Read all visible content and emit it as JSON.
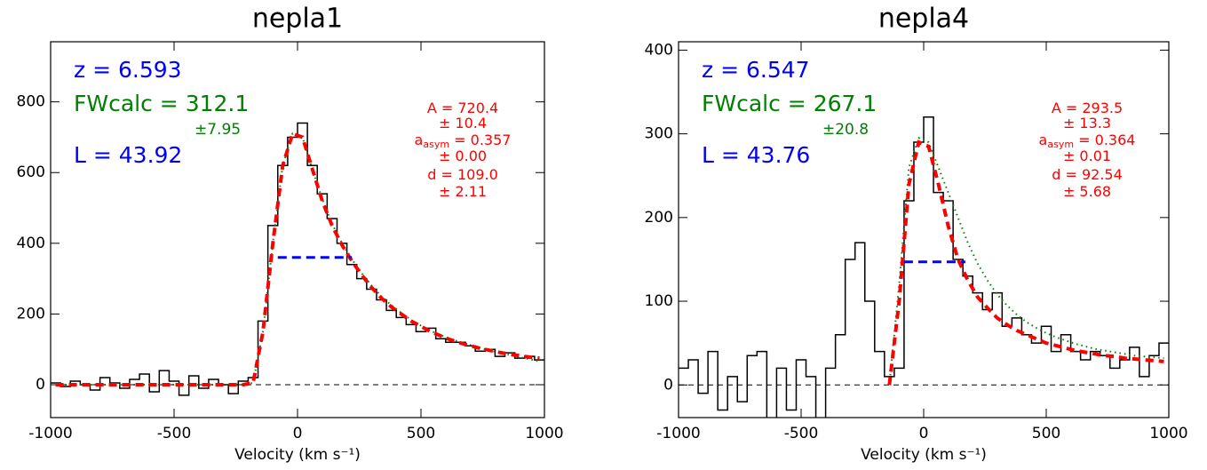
{
  "chart_data": [
    {
      "type": "step",
      "title": "nepla1",
      "xlabel": "Velocity (km s⁻¹)",
      "xlim": [
        -1000,
        1000
      ],
      "xticks": [
        -1000,
        -500,
        0,
        500,
        1000
      ],
      "ylim": [
        -93,
        970
      ],
      "yticks": [
        0,
        200,
        400,
        600,
        800
      ],
      "reference_line": 0,
      "fw_line": {
        "y": 360,
        "x": [
          -80,
          220
        ],
        "color": "#0000ff"
      },
      "x": [
        -980,
        -940,
        -900,
        -860,
        -820,
        -780,
        -740,
        -700,
        -660,
        -620,
        -580,
        -540,
        -500,
        -460,
        -420,
        -380,
        -340,
        -300,
        -260,
        -220,
        -180,
        -140,
        -100,
        -60,
        -20,
        20,
        60,
        100,
        140,
        180,
        220,
        260,
        300,
        340,
        380,
        420,
        460,
        500,
        540,
        580,
        620,
        660,
        700,
        740,
        780,
        820,
        860,
        900,
        940,
        980
      ],
      "series": [
        {
          "color": "#000000",
          "style": "step",
          "values": [
            5,
            -5,
            10,
            0,
            -15,
            20,
            5,
            -10,
            15,
            30,
            -20,
            40,
            10,
            -30,
            25,
            -10,
            15,
            0,
            -25,
            10,
            20,
            180,
            450,
            620,
            700,
            740,
            620,
            540,
            470,
            400,
            340,
            300,
            270,
            240,
            210,
            190,
            170,
            150,
            160,
            130,
            120,
            120,
            110,
            95,
            100,
            80,
            90,
            75,
            80,
            70
          ]
        },
        {
          "color": "#008000",
          "style": "dotted",
          "values": [
            0,
            0,
            0,
            0,
            0,
            0,
            0,
            0,
            0,
            0,
            0,
            0,
            0,
            0,
            0,
            0,
            0,
            0,
            0,
            0,
            5,
            150,
            400,
            620,
            710,
            700,
            610,
            525,
            455,
            400,
            355,
            315,
            280,
            250,
            225,
            203,
            183,
            167,
            152,
            140,
            129,
            120,
            112,
            104,
            97,
            90,
            84,
            78,
            72,
            66
          ]
        },
        {
          "color": "#ff0000",
          "style": "dashed",
          "values": [
            0,
            0,
            0,
            0,
            0,
            0,
            0,
            0,
            0,
            0,
            0,
            0,
            0,
            0,
            0,
            0,
            0,
            0,
            0,
            0,
            5,
            150,
            400,
            620,
            710,
            700,
            610,
            520,
            450,
            395,
            350,
            310,
            275,
            245,
            220,
            200,
            180,
            165,
            150,
            138,
            127,
            118,
            110,
            103,
            97,
            91,
            86,
            82,
            78,
            75
          ]
        }
      ],
      "annotations": [
        {
          "text": "z = 6.593",
          "color": "#0000ff"
        },
        {
          "text": "FWcalc = 312.1",
          "color": "#008000"
        },
        {
          "text": "±7.95",
          "color": "#008000"
        },
        {
          "text": "L = 43.92",
          "color": "#0000ff"
        },
        {
          "text": "A = 720.4",
          "color": "#ff0000"
        },
        {
          "text": "± 10.4",
          "color": "#ff0000"
        },
        {
          "text": "a",
          "sub": "asym",
          "rest": " = 0.357",
          "color": "#ff0000"
        },
        {
          "text": "± 0.00",
          "color": "#ff0000"
        },
        {
          "text": "d = 109.0",
          "color": "#ff0000"
        },
        {
          "text": "± 2.11",
          "color": "#ff0000"
        }
      ]
    },
    {
      "type": "step",
      "title": "nepla4",
      "xlabel": "Velocity (km s⁻¹)",
      "xlim": [
        -1000,
        1000
      ],
      "xticks": [
        -1000,
        -500,
        0,
        500,
        1000
      ],
      "ylim": [
        -39,
        410
      ],
      "yticks": [
        0,
        100,
        200,
        300,
        400
      ],
      "reference_line": 0,
      "fw_line": {
        "y": 147,
        "x": [
          -80,
          170
        ],
        "color": "#0000ff"
      },
      "x": [
        -980,
        -940,
        -900,
        -860,
        -820,
        -780,
        -740,
        -700,
        -660,
        -620,
        -580,
        -540,
        -500,
        -460,
        -420,
        -380,
        -340,
        -300,
        -260,
        -220,
        -180,
        -140,
        -100,
        -60,
        -20,
        20,
        60,
        100,
        140,
        180,
        220,
        260,
        300,
        340,
        380,
        420,
        460,
        500,
        540,
        580,
        620,
        660,
        700,
        740,
        780,
        820,
        860,
        900,
        940,
        980
      ],
      "series": [
        {
          "color": "#000000",
          "style": "step",
          "values": [
            20,
            30,
            -10,
            40,
            -30,
            10,
            -20,
            35,
            40,
            -40,
            20,
            -30,
            30,
            10,
            -40,
            20,
            60,
            150,
            170,
            100,
            40,
            10,
            20,
            220,
            290,
            320,
            230,
            220,
            150,
            130,
            110,
            90,
            110,
            70,
            80,
            60,
            50,
            70,
            40,
            60,
            40,
            30,
            40,
            35,
            20,
            30,
            45,
            10,
            35,
            50
          ]
        },
        {
          "color": "#008000",
          "style": "dotted",
          "values": [
            null,
            null,
            null,
            null,
            null,
            null,
            null,
            null,
            null,
            null,
            null,
            null,
            null,
            null,
            null,
            null,
            null,
            null,
            null,
            null,
            null,
            0,
            120,
            260,
            295,
            290,
            260,
            230,
            200,
            170,
            145,
            125,
            108,
            95,
            84,
            75,
            68,
            62,
            57,
            53,
            49,
            46,
            43,
            41,
            39,
            37,
            35,
            34,
            33,
            32
          ]
        },
        {
          "color": "#ff0000",
          "style": "dashed",
          "values": [
            null,
            null,
            null,
            null,
            null,
            null,
            null,
            null,
            null,
            null,
            null,
            null,
            null,
            null,
            null,
            null,
            null,
            null,
            null,
            null,
            null,
            0,
            100,
            240,
            290,
            285,
            240,
            190,
            150,
            125,
            105,
            92,
            80,
            72,
            65,
            60,
            55,
            50,
            47,
            44,
            41,
            39,
            37,
            35,
            34,
            32,
            31,
            30,
            29,
            28
          ]
        }
      ],
      "annotations": [
        {
          "text": "z = 6.547",
          "color": "#0000ff"
        },
        {
          "text": "FWcalc = 267.1",
          "color": "#008000"
        },
        {
          "text": "±20.8",
          "color": "#008000"
        },
        {
          "text": "L = 43.76",
          "color": "#0000ff"
        },
        {
          "text": "A = 293.5",
          "color": "#ff0000"
        },
        {
          "text": "± 13.3",
          "color": "#ff0000"
        },
        {
          "text": "a",
          "sub": "asym",
          "rest": " = 0.364",
          "color": "#ff0000"
        },
        {
          "text": "± 0.01",
          "color": "#ff0000"
        },
        {
          "text": "d = 92.54",
          "color": "#ff0000"
        },
        {
          "text": "± 5.68",
          "color": "#ff0000"
        }
      ]
    }
  ]
}
